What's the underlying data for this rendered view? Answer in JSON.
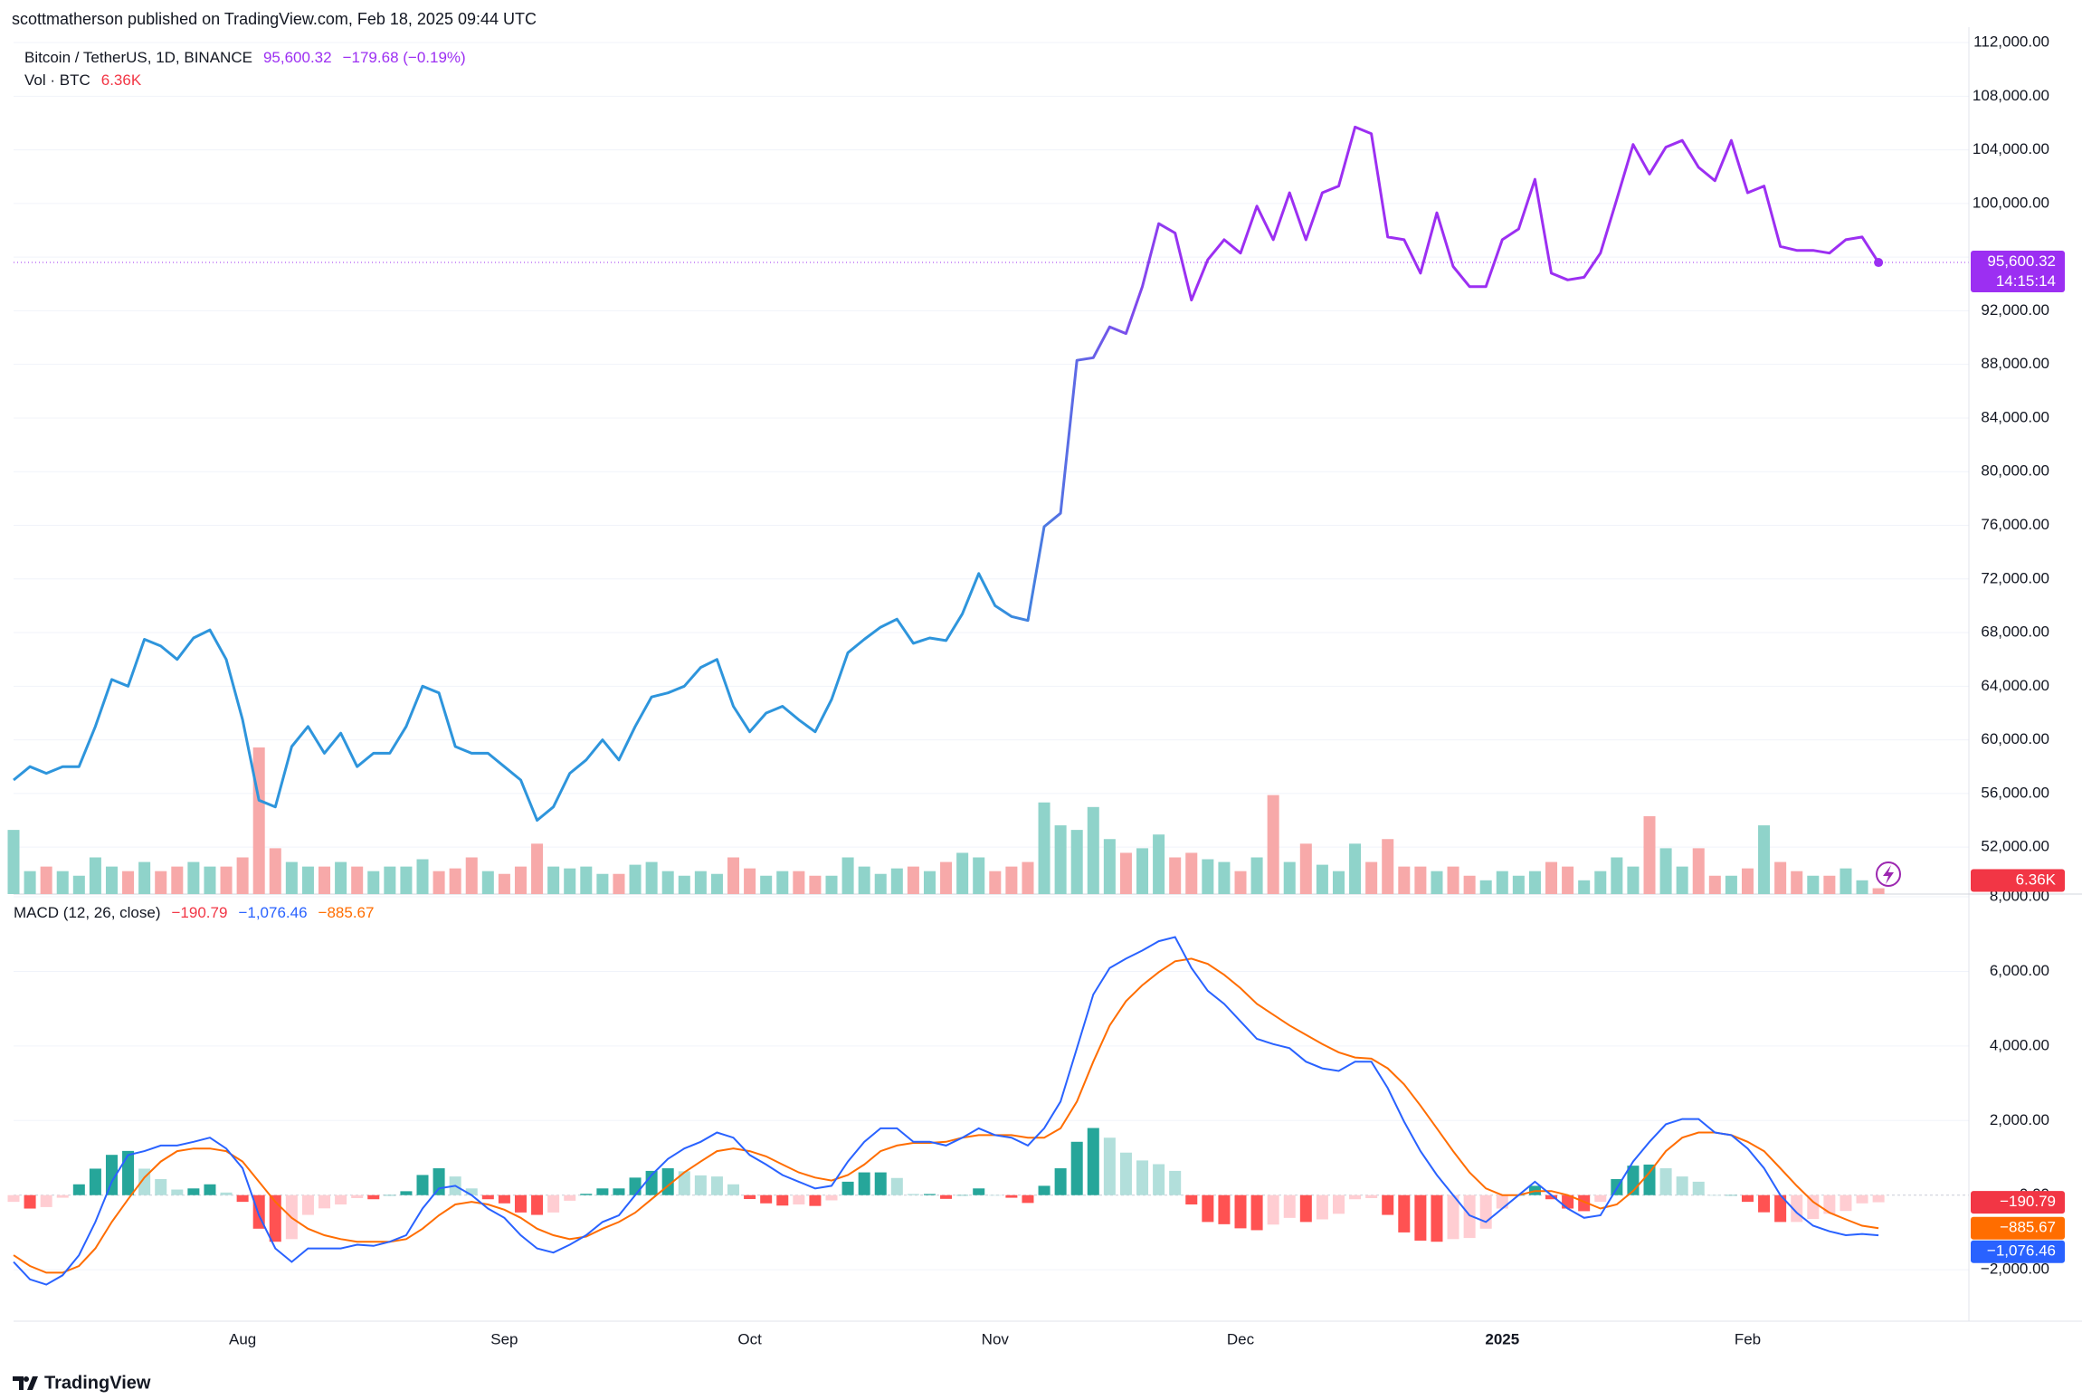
{
  "attribution": "scottmatherson published on TradingView.com, Feb 18, 2025 09:44 UTC",
  "brand": "TradingView",
  "chart_data": {
    "type": "line",
    "title": "Bitcoin / TetherUS, 1D, BINANCE",
    "change": "−179.68 (−0.19%)",
    "countdown": "14:15:14",
    "categories": [
      null,
      null,
      null,
      null,
      null,
      null,
      null,
      null,
      null,
      null,
      null,
      null,
      null,
      null,
      "Aug",
      null,
      null,
      null,
      null,
      null,
      null,
      null,
      null,
      null,
      null,
      null,
      null,
      null,
      null,
      null,
      "Sep",
      null,
      null,
      null,
      null,
      null,
      null,
      null,
      null,
      null,
      null,
      null,
      null,
      null,
      null,
      "Oct",
      null,
      null,
      null,
      null,
      null,
      null,
      null,
      null,
      null,
      null,
      null,
      null,
      null,
      null,
      "Nov",
      null,
      null,
      null,
      null,
      null,
      null,
      null,
      null,
      null,
      null,
      null,
      null,
      null,
      null,
      "Dec",
      null,
      null,
      null,
      null,
      null,
      null,
      null,
      null,
      null,
      null,
      null,
      null,
      null,
      null,
      null,
      "2025",
      null,
      null,
      null,
      null,
      null,
      null,
      null,
      null,
      null,
      null,
      null,
      null,
      null,
      null,
      "Feb",
      null,
      null,
      null,
      null,
      null,
      null,
      null,
      null
    ],
    "ylim": [
      48500,
      113150
    ],
    "yticks": [
      {
        "value": 52000,
        "label": "52,000.00"
      },
      {
        "value": 56000,
        "label": "56,000.00"
      },
      {
        "value": 60000,
        "label": "60,000.00"
      },
      {
        "value": 64000,
        "label": "64,000.00"
      },
      {
        "value": 68000,
        "label": "68,000.00"
      },
      {
        "value": 72000,
        "label": "72,000.00"
      },
      {
        "value": 76000,
        "label": "76,000.00"
      },
      {
        "value": 80000,
        "label": "80,000.00"
      },
      {
        "value": 84000,
        "label": "84,000.00"
      },
      {
        "value": 88000,
        "label": "88,000.00"
      },
      {
        "value": 92000,
        "label": "92,000.00"
      },
      {
        "value": 96000,
        "label": "96,000.00"
      },
      {
        "value": 100000,
        "label": "100,000.00"
      },
      {
        "value": 104000,
        "label": "104,000.00"
      },
      {
        "value": 108000,
        "label": "108,000.00"
      },
      {
        "value": 112000,
        "label": "112,000.00"
      }
    ],
    "grid": true,
    "series": [
      {
        "color": "#9c2ff2",
        "gradient_from": "#2e95dc",
        "last_label": "95,600.32",
        "values": [
          57000,
          58000,
          57500,
          58000,
          58000,
          61000,
          64500,
          64000,
          67500,
          67000,
          66000,
          67600,
          68200,
          66000,
          61500,
          55500,
          55000,
          59500,
          61000,
          59000,
          60500,
          58000,
          59000,
          59000,
          61000,
          64000,
          63500,
          59500,
          59000,
          59000,
          58000,
          57000,
          54000,
          55000,
          57500,
          58500,
          60000,
          58500,
          61000,
          63200,
          63500,
          64000,
          65400,
          66000,
          62500,
          60600,
          62000,
          62500,
          61500,
          60600,
          63000,
          66500,
          67500,
          68400,
          69000,
          67200,
          67600,
          67400,
          69400,
          72400,
          70000,
          69200,
          68900,
          75900,
          76900,
          88300,
          88500,
          90800,
          90300,
          93800,
          98500,
          97800,
          92800,
          95800,
          97300,
          96300,
          99800,
          97300,
          100800,
          97300,
          100800,
          101300,
          105700,
          105200,
          97500,
          97300,
          94800,
          99300,
          95300,
          93800,
          93800,
          97300,
          98100,
          101800,
          94800,
          94300,
          94500,
          96300,
          100300,
          104400,
          102200,
          104200,
          104700,
          102700,
          101700,
          104700,
          100800,
          101300,
          96800,
          96500,
          96500,
          96300,
          97300,
          97500,
          95600.32
        ]
      }
    ],
    "volume": {
      "title": "Vol · BTC",
      "last_label": "6.36K",
      "up_color": "#8fd3ca",
      "down_color": "#f7a9a9",
      "tag_color": "#f23645",
      "values": [
        70000,
        25000,
        30000,
        25000,
        20000,
        40000,
        30000,
        25000,
        35000,
        25000,
        30000,
        35000,
        30000,
        30000,
        40000,
        160000,
        50000,
        35000,
        30000,
        30000,
        35000,
        30000,
        25000,
        30000,
        30000,
        38000,
        25000,
        28000,
        40000,
        25000,
        22000,
        30000,
        55000,
        30000,
        28000,
        30000,
        22000,
        22000,
        32000,
        35000,
        25000,
        20000,
        25000,
        22000,
        40000,
        28000,
        20000,
        25000,
        25000,
        20000,
        20000,
        40000,
        30000,
        22000,
        28000,
        30000,
        25000,
        35000,
        45000,
        40000,
        25000,
        30000,
        35000,
        100000,
        75000,
        70000,
        95000,
        60000,
        45000,
        50000,
        65000,
        40000,
        45000,
        38000,
        35000,
        25000,
        40000,
        108000,
        35000,
        55000,
        32000,
        25000,
        55000,
        35000,
        60000,
        30000,
        30000,
        25000,
        30000,
        20000,
        15000,
        25000,
        20000,
        25000,
        35000,
        30000,
        15000,
        25000,
        40000,
        30000,
        85000,
        50000,
        30000,
        50000,
        20000,
        20000,
        28000,
        75000,
        35000,
        25000,
        20000,
        20000,
        28000,
        15000,
        6360
      ]
    },
    "macd": {
      "title": "MACD (12, 26, close)",
      "ylim": [
        -3380,
        8025
      ],
      "yticks": [
        {
          "value": -2000,
          "label": "−2,000.00"
        },
        {
          "value": 0,
          "label": "0.00"
        },
        {
          "value": 2000,
          "label": "2,000.00"
        },
        {
          "value": 4000,
          "label": "4,000.00"
        },
        {
          "value": 6000,
          "label": "6,000.00"
        },
        {
          "value": 8000,
          "label": "8,000.00"
        }
      ],
      "histogram": {
        "last_label": "−190.79",
        "color": "#f23645",
        "colors": [
          "#26a69a",
          "#b2dfdb",
          "#ff5252",
          "#ffcdd2"
        ],
        "values": [
          -180,
          -360,
          -320,
          -70,
          290,
          710,
          1080,
          1185,
          710,
          430,
          150,
          180,
          290,
          70,
          -180,
          -900,
          -1250,
          -1180,
          -530,
          -355,
          -250,
          -80,
          -110,
          0,
          105,
          540,
          720,
          500,
          180,
          -110,
          -220,
          -465,
          -530,
          -465,
          -150,
          35,
          180,
          180,
          470,
          650,
          720,
          640,
          530,
          500,
          290,
          -105,
          -220,
          -280,
          -250,
          -290,
          -140,
          360,
          610,
          610,
          460,
          30,
          30,
          -100,
          0,
          180,
          0,
          -70,
          -210,
          250,
          720,
          1430,
          1800,
          1540,
          1140,
          930,
          830,
          650,
          -250,
          -720,
          -780,
          -890,
          -940,
          -790,
          -610,
          -720,
          -650,
          -500,
          -110,
          -80,
          -530,
          -1000,
          -1220,
          -1250,
          -1180,
          -1150,
          -900,
          -360,
          0,
          250,
          -110,
          -360,
          -430,
          -180,
          430,
          790,
          820,
          720,
          500,
          360,
          0,
          0,
          -180,
          -460,
          -720,
          -720,
          -640,
          -500,
          -425,
          -220,
          -190.79
        ]
      },
      "macd_line": {
        "last_label": "−1,076.46",
        "color": "#2962ff",
        "values": [
          -1790,
          -2260,
          -2400,
          -2150,
          -1610,
          -720,
          360,
          1075,
          1180,
          1330,
          1330,
          1430,
          1540,
          1250,
          720,
          -540,
          -1430,
          -1790,
          -1430,
          -1430,
          -1430,
          -1330,
          -1360,
          -1250,
          -1075,
          -360,
          180,
          250,
          0,
          -360,
          -610,
          -1075,
          -1430,
          -1540,
          -1330,
          -1075,
          -720,
          -540,
          0,
          540,
          970,
          1250,
          1430,
          1680,
          1540,
          1075,
          820,
          540,
          360,
          180,
          250,
          900,
          1430,
          1790,
          1790,
          1430,
          1430,
          1330,
          1540,
          1790,
          1610,
          1540,
          1330,
          1790,
          2510,
          3940,
          5380,
          6090,
          6340,
          6560,
          6810,
          6920,
          6090,
          5480,
          5130,
          4660,
          4190,
          4050,
          3940,
          3580,
          3400,
          3330,
          3580,
          3580,
          2870,
          1970,
          1180,
          540,
          0,
          -540,
          -720,
          -360,
          0,
          360,
          0,
          -360,
          -610,
          -540,
          180,
          900,
          1430,
          1900,
          2040,
          2040,
          1680,
          1610,
          1250,
          720,
          0,
          -470,
          -820,
          -970,
          -1075,
          -1040,
          -1076.46
        ]
      },
      "signal_line": {
        "last_label": "−885.67",
        "color": "#ff6d00",
        "values": [
          -1610,
          -1900,
          -2080,
          -2080,
          -1900,
          -1430,
          -720,
          -110,
          470,
          900,
          1180,
          1250,
          1250,
          1180,
          900,
          360,
          -180,
          -610,
          -900,
          -1075,
          -1180,
          -1250,
          -1250,
          -1250,
          -1180,
          -900,
          -540,
          -250,
          -180,
          -250,
          -390,
          -610,
          -900,
          -1075,
          -1180,
          -1110,
          -900,
          -720,
          -470,
          -110,
          250,
          610,
          900,
          1180,
          1250,
          1180,
          1040,
          820,
          610,
          470,
          390,
          540,
          820,
          1180,
          1330,
          1400,
          1400,
          1430,
          1540,
          1610,
          1610,
          1610,
          1540,
          1540,
          1790,
          2510,
          3580,
          4550,
          5200,
          5630,
          5980,
          6270,
          6340,
          6200,
          5910,
          5550,
          5130,
          4840,
          4550,
          4300,
          4050,
          3830,
          3690,
          3660,
          3400,
          2970,
          2400,
          1790,
          1180,
          610,
          180,
          0,
          0,
          110,
          110,
          0,
          -180,
          -360,
          -250,
          110,
          610,
          1180,
          1540,
          1680,
          1680,
          1610,
          1430,
          1180,
          720,
          250,
          -180,
          -470,
          -650,
          -820,
          -885.67
        ]
      }
    }
  }
}
